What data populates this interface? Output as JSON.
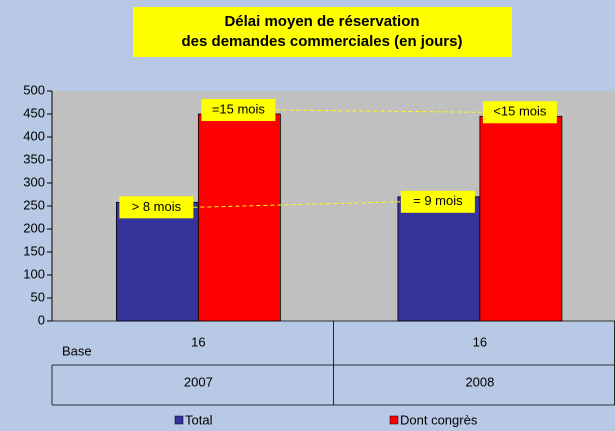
{
  "chart_data": {
    "type": "bar",
    "title_lines": [
      "Délai moyen de réservation",
      "des demandes commerciales  (en jours)"
    ],
    "categories": [
      "2007",
      "2008"
    ],
    "series": [
      {
        "name": "Total",
        "color": "#333399",
        "values": [
          258,
          270
        ]
      },
      {
        "name": "Dont congrès",
        "color": "#ff0000",
        "values": [
          450,
          445
        ]
      }
    ],
    "annotations": [
      "> 8 mois",
      "=15 mois",
      "= 9 mois",
      "<15 mois"
    ],
    "table": {
      "row_label": "Base",
      "values": [
        16,
        16
      ]
    },
    "ylim": [
      0,
      500
    ],
    "yticks": [
      0,
      50,
      100,
      150,
      200,
      250,
      300,
      350,
      400,
      450,
      500
    ],
    "legend": "bottom"
  }
}
